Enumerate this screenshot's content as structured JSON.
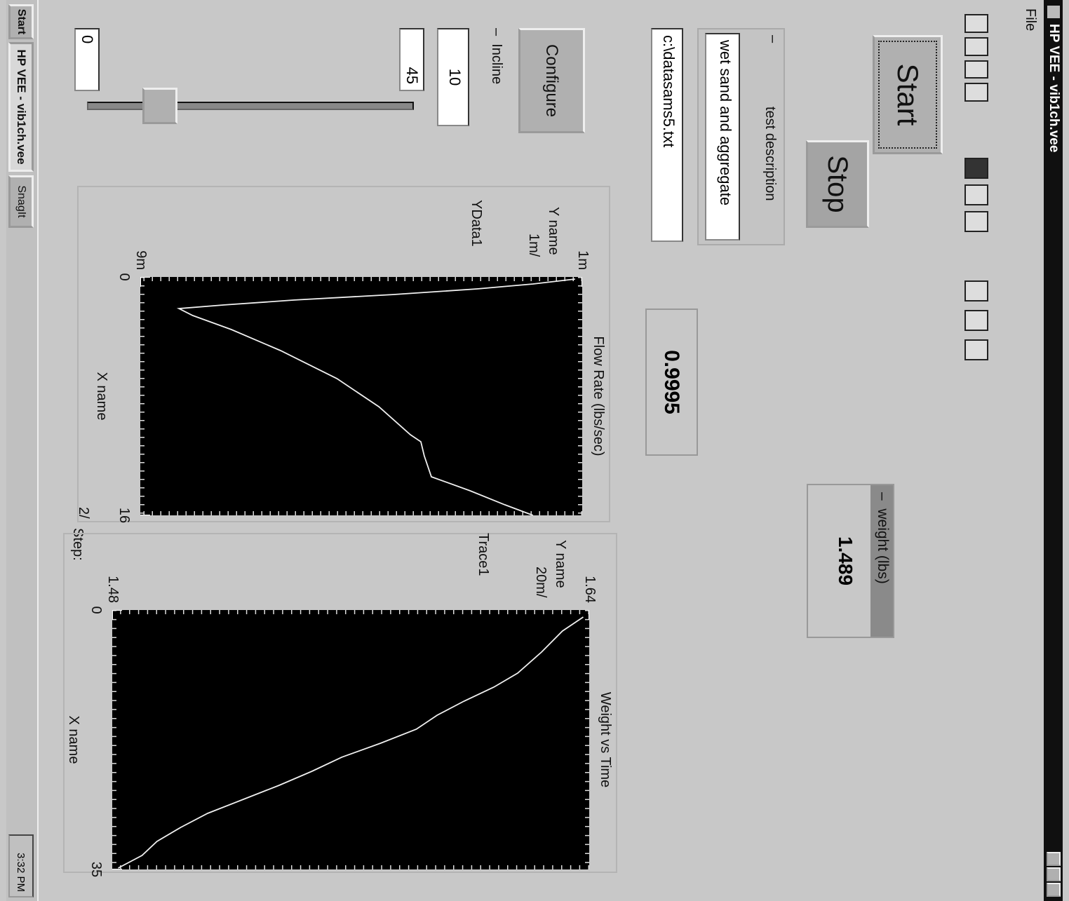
{
  "window": {
    "title": "HP VEE - vib1ch.vee",
    "menu": [
      "File"
    ]
  },
  "controls": {
    "start": "Start",
    "stop": "Stop",
    "configure": "Configure"
  },
  "test_description": {
    "title": "test description",
    "value": "wet sand and aggregate"
  },
  "file_path": "c:\\datasams5.txt",
  "incline": {
    "label": "Incline",
    "value": 10,
    "slider_max": 45,
    "slider_min": 0
  },
  "flow_rate_value": "0.9995",
  "weight": {
    "title": "weight (lbs)",
    "value": "1.489"
  },
  "graphs": [
    {
      "type": "line",
      "title": "Flow Rate (lbs/sec)",
      "y_name": "Y name",
      "y_scale": "1m/",
      "trace": "YData1",
      "x_name": "X name",
      "x_scale": "2/",
      "step_label": "Step:",
      "x": [
        0.14,
        0.47,
        0.8,
        1.18,
        1.55,
        1.88,
        2.12,
        2.59,
        3.53,
        4.94,
        6.82,
        8.71,
        10.59,
        11.06,
        12.0,
        13.41,
        14.35,
        15.29,
        16.0
      ],
      "values": [
        0.00113,
        0.00189,
        0.0029,
        0.00443,
        0.00621,
        0.00748,
        0.0083,
        0.00805,
        0.00735,
        0.00646,
        0.00544,
        0.00468,
        0.00411,
        0.00392,
        0.00386,
        0.00373,
        0.00303,
        0.0024,
        0.00189
      ],
      "color": "#f0f0f0",
      "xlim": [
        0,
        16
      ],
      "xticks": [
        0,
        16
      ],
      "ylim": [
        0.009,
        0.001
      ],
      "yticks": [
        {
          "value": 0.001,
          "label": "1m"
        },
        {
          "value": 0.009,
          "label": "9m"
        }
      ]
    },
    {
      "type": "line",
      "title": "Weight vs Time",
      "y_name": "Y name",
      "y_scale": "20m/",
      "trace": "Trace1",
      "x_name": "X name",
      "x": [
        0.95,
        2.84,
        5.68,
        8.51,
        10.41,
        12.3,
        14.19,
        16.08,
        17.97,
        19.86,
        21.76,
        23.65,
        25.54,
        27.43,
        29.32,
        31.22,
        33.11,
        34.81
      ],
      "values": [
        1.638,
        1.631,
        1.624,
        1.616,
        1.608,
        1.598,
        1.589,
        1.582,
        1.57,
        1.557,
        1.547,
        1.536,
        1.524,
        1.512,
        1.503,
        1.495,
        1.49,
        1.482
      ],
      "color": "#f0f0f0",
      "xlim": [
        0,
        35
      ],
      "xticks": [
        0,
        35
      ],
      "ylim": [
        1.48,
        1.64
      ],
      "yticks": [
        1.48,
        1.64
      ]
    }
  ],
  "taskbar": {
    "start": "Start",
    "tasks": [
      "HP VEE - vib1ch.vee",
      "SnagIt"
    ],
    "clock": "3:32 PM"
  }
}
